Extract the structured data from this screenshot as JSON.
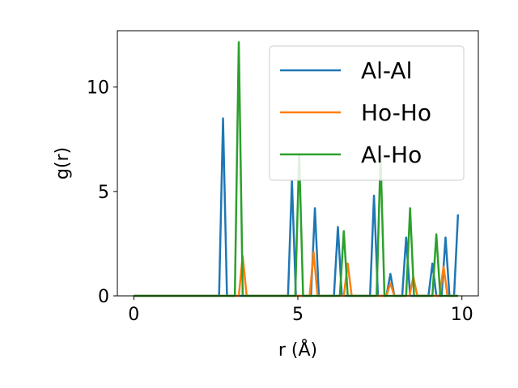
{
  "chart_data": {
    "type": "line",
    "xlabel": "r (Å)",
    "ylabel": "g(r)",
    "xlim": [
      -0.5,
      10.5
    ],
    "ylim": [
      0,
      12.7
    ],
    "xticks": [
      0,
      5,
      10
    ],
    "xtick_labels": [
      "0",
      "5",
      "10"
    ],
    "yticks": [
      0,
      5,
      10
    ],
    "ytick_labels": [
      "0",
      "5",
      "10"
    ],
    "grid": false,
    "legend_position": "top-right",
    "series": [
      {
        "name": "Al-Al",
        "color": "#1f77b4",
        "x": [
          0,
          2.6,
          2.72,
          2.84,
          4.7,
          4.82,
          4.94,
          5.4,
          5.52,
          5.64,
          6.1,
          6.22,
          6.34,
          7.2,
          7.32,
          7.44,
          7.7,
          7.82,
          7.94,
          8.18,
          8.3,
          8.42,
          8.98,
          9.1,
          9.22,
          9.38,
          9.5,
          9.62,
          9.76,
          9.88
        ],
        "y": [
          0,
          0,
          8.5,
          0,
          0,
          5.5,
          0,
          0,
          4.2,
          0,
          0,
          3.3,
          0,
          0,
          4.8,
          0,
          0,
          1.05,
          0,
          0,
          2.8,
          0,
          0,
          1.55,
          0,
          0,
          2.8,
          0,
          0,
          3.9
        ]
      },
      {
        "name": "Ho-Ho",
        "color": "#ff7f0e",
        "x": [
          0,
          3.2,
          3.32,
          3.44,
          5.36,
          5.48,
          5.6,
          6.4,
          6.52,
          6.64,
          7.7,
          7.82,
          7.94,
          8.4,
          8.52,
          8.64,
          9.32,
          9.44,
          9.56,
          9.88
        ],
        "y": [
          0,
          0,
          1.9,
          0,
          0,
          2.1,
          0,
          0,
          1.55,
          0,
          0,
          0.6,
          0,
          0,
          0.9,
          0,
          0,
          1.4,
          0,
          0
        ]
      },
      {
        "name": "Al-Ho",
        "color": "#2ca02c",
        "x": [
          0,
          3.08,
          3.2,
          3.32,
          4.92,
          5.04,
          5.16,
          6.28,
          6.4,
          6.52,
          7.4,
          7.52,
          7.64,
          8.3,
          8.42,
          8.54,
          9.1,
          9.22,
          9.34,
          9.88
        ],
        "y": [
          0,
          0,
          12.15,
          0,
          0,
          6.8,
          0,
          0,
          3.1,
          0,
          0,
          6.7,
          0,
          0,
          4.2,
          0,
          0,
          2.95,
          0,
          0
        ]
      }
    ]
  }
}
